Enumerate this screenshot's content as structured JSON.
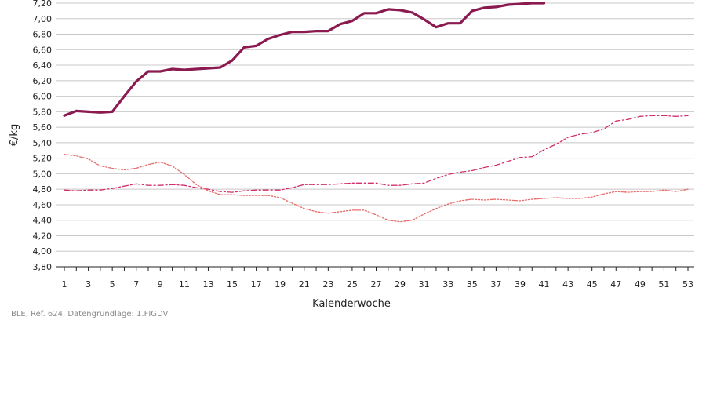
{
  "chart_data": {
    "type": "line",
    "xlabel": "Kalenderwoche",
    "ylabel": "€/kg",
    "ylim": [
      3.8,
      7.2
    ],
    "yticks": [
      3.8,
      4.0,
      4.2,
      4.4,
      4.6,
      4.8,
      5.0,
      5.2,
      5.4,
      5.6,
      5.8,
      6.0,
      6.2,
      6.4,
      6.6,
      6.8,
      7.0,
      7.2
    ],
    "ytick_labels": [
      "3,80",
      "4,00",
      "4,20",
      "4,40",
      "4,60",
      "4,80",
      "5,00",
      "5,20",
      "5,40",
      "5,60",
      "5,80",
      "6,00",
      "6,20",
      "6,40",
      "6,60",
      "6,80",
      "7,00",
      "7,20"
    ],
    "xlim": [
      1,
      53
    ],
    "xticks": [
      1,
      3,
      5,
      7,
      9,
      11,
      13,
      15,
      17,
      19,
      21,
      23,
      25,
      27,
      29,
      31,
      33,
      35,
      37,
      39,
      41,
      43,
      45,
      47,
      49,
      51,
      53
    ],
    "xtick_labels": [
      "1",
      "3",
      "5",
      "7",
      "9",
      "11",
      "13",
      "15",
      "17",
      "19",
      "21",
      "23",
      "25",
      "27",
      "29",
      "31",
      "33",
      "35",
      "37",
      "39",
      "41",
      "43",
      "45",
      "47",
      "49",
      "51",
      "53"
    ],
    "grid": "horizontal",
    "series": [
      {
        "style": "solid-thick",
        "color": "#8a1a50",
        "x": [
          1,
          2,
          3,
          4,
          5,
          6,
          7,
          8,
          9,
          10,
          11,
          12,
          13,
          14,
          15,
          16,
          17,
          18,
          19,
          20,
          21,
          22,
          23,
          24,
          25,
          26,
          27,
          28,
          29,
          30,
          31,
          32,
          33,
          34,
          35,
          36,
          37,
          38,
          39,
          40,
          41
        ],
        "values": [
          5.75,
          5.81,
          5.8,
          5.79,
          5.8,
          6.0,
          6.19,
          6.32,
          6.32,
          6.35,
          6.34,
          6.35,
          6.36,
          6.37,
          6.46,
          6.63,
          6.65,
          6.74,
          6.79,
          6.83,
          6.83,
          6.84,
          6.84,
          6.93,
          6.97,
          7.07,
          7.07,
          7.12,
          7.11,
          7.08,
          6.99,
          6.89,
          6.94,
          6.94,
          7.1,
          7.14,
          7.15,
          7.18,
          7.19,
          7.2,
          7.2
        ]
      },
      {
        "style": "dash-dot",
        "color": "#d0306e",
        "x": [
          1,
          2,
          3,
          4,
          5,
          6,
          7,
          8,
          9,
          10,
          11,
          12,
          13,
          14,
          15,
          16,
          17,
          18,
          19,
          20,
          21,
          22,
          23,
          24,
          25,
          26,
          27,
          28,
          29,
          30,
          31,
          32,
          33,
          34,
          35,
          36,
          37,
          38,
          39,
          40,
          41,
          42,
          43,
          44,
          45,
          46,
          47,
          48,
          49,
          50,
          51,
          52,
          53
        ],
        "values": [
          4.79,
          4.78,
          4.79,
          4.79,
          4.81,
          4.84,
          4.87,
          4.85,
          4.85,
          4.86,
          4.85,
          4.82,
          4.8,
          4.77,
          4.76,
          4.78,
          4.79,
          4.79,
          4.79,
          4.82,
          4.86,
          4.86,
          4.86,
          4.87,
          4.88,
          4.88,
          4.88,
          4.85,
          4.85,
          4.87,
          4.88,
          4.94,
          4.99,
          5.02,
          5.04,
          5.08,
          5.11,
          5.16,
          5.21,
          5.22,
          5.31,
          5.38,
          5.47,
          5.51,
          5.53,
          5.58,
          5.68,
          5.7,
          5.74,
          5.75,
          5.75,
          5.74,
          5.75
        ]
      },
      {
        "style": "dotted",
        "color": "#e86a6a",
        "x": [
          1,
          2,
          3,
          4,
          5,
          6,
          7,
          8,
          9,
          10,
          11,
          12,
          13,
          14,
          15,
          16,
          17,
          18,
          19,
          20,
          21,
          22,
          23,
          24,
          25,
          26,
          27,
          28,
          29,
          30,
          31,
          32,
          33,
          34,
          35,
          36,
          37,
          38,
          39,
          40,
          41,
          42,
          43,
          44,
          45,
          46,
          47,
          48,
          49,
          50,
          51,
          52,
          53
        ],
        "values": [
          5.25,
          5.23,
          5.19,
          5.1,
          5.07,
          5.05,
          5.07,
          5.12,
          5.15,
          5.1,
          4.99,
          4.86,
          4.78,
          4.73,
          4.73,
          4.72,
          4.72,
          4.72,
          4.69,
          4.62,
          4.55,
          4.51,
          4.49,
          4.51,
          4.53,
          4.53,
          4.47,
          4.4,
          4.38,
          4.4,
          4.48,
          4.55,
          4.61,
          4.65,
          4.67,
          4.66,
          4.67,
          4.66,
          4.65,
          4.67,
          4.68,
          4.69,
          4.68,
          4.68,
          4.7,
          4.74,
          4.77,
          4.76,
          4.77,
          4.77,
          4.79,
          4.77,
          4.8
        ]
      }
    ]
  },
  "source_note": "BLE, Ref. 624, Datengrundlage: 1.FIGDV"
}
